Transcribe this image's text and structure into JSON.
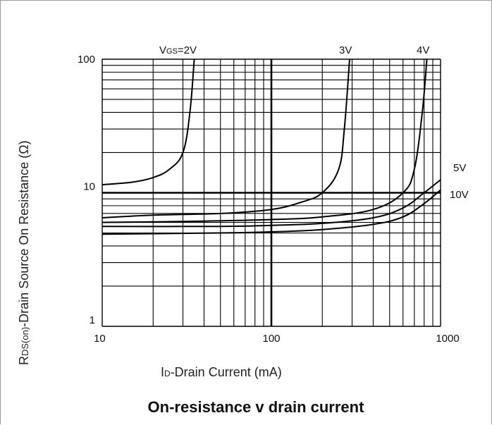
{
  "chart_data": {
    "type": "line",
    "title": "On-resistance v drain current",
    "xlabel": "ID-Drain Current (mA)",
    "ylabel": "RDS(on)-Drain Source On Resistance  (Ω)",
    "xscale": "log",
    "yscale": "log",
    "xlim": [
      10,
      1000
    ],
    "ylim": [
      1,
      100
    ],
    "x_tick_labels": [
      "10",
      "100",
      "1000"
    ],
    "y_tick_labels": [
      "1",
      "10",
      "100"
    ],
    "grid": true,
    "series_label_prefix": "VGS=",
    "series": [
      {
        "name": "2V",
        "label": "VGS=2V",
        "x": [
          10,
          15,
          20,
          25,
          30,
          33,
          35
        ],
        "y": [
          11.5,
          12,
          13,
          15,
          20,
          40,
          100
        ]
      },
      {
        "name": "3V",
        "label": "3V",
        "x": [
          10,
          20,
          50,
          100,
          150,
          200,
          250,
          270,
          290
        ],
        "y": [
          6.5,
          6.8,
          7.0,
          7.5,
          8.5,
          10,
          15,
          30,
          100
        ]
      },
      {
        "name": "4V",
        "label": "4V",
        "x": [
          10,
          30,
          100,
          200,
          400,
          600,
          700,
          780,
          830
        ],
        "y": [
          6.0,
          6.1,
          6.3,
          6.6,
          7.5,
          10,
          15,
          40,
          100
        ]
      },
      {
        "name": "5V",
        "label": "5V",
        "x": [
          10,
          50,
          100,
          200,
          400,
          600,
          800,
          1000
        ],
        "y": [
          5.6,
          5.6,
          5.7,
          5.9,
          6.5,
          7.7,
          10,
          12.5
        ]
      },
      {
        "name": "10V",
        "label": "10V",
        "x": [
          10,
          50,
          100,
          200,
          400,
          600,
          800,
          1000
        ],
        "y": [
          4.9,
          5.0,
          5.1,
          5.3,
          5.8,
          6.6,
          8.3,
          10.5
        ]
      }
    ],
    "line_color": "#000000",
    "grid_color": "#000000"
  }
}
